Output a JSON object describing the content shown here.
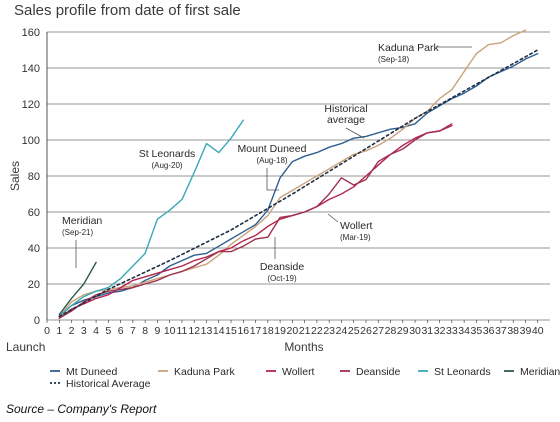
{
  "chart_data": {
    "type": "line",
    "title": "Sales profile from date of first sale",
    "xlabel": "Months",
    "xlabel_left": "Launch",
    "ylabel": "Sales",
    "source": "Source – Company's Report",
    "xlim": [
      0,
      41
    ],
    "ylim": [
      0,
      160
    ],
    "xticks": [
      0,
      1,
      2,
      3,
      4,
      5,
      6,
      7,
      8,
      9,
      10,
      11,
      12,
      13,
      14,
      15,
      16,
      17,
      18,
      19,
      20,
      21,
      22,
      23,
      24,
      25,
      26,
      27,
      28,
      29,
      30,
      31,
      32,
      33,
      34,
      35,
      36,
      37,
      38,
      39,
      40
    ],
    "yticks": [
      0,
      20,
      40,
      60,
      80,
      100,
      120,
      140,
      160
    ],
    "grid": "horizontal",
    "legend_position": "bottom",
    "series": [
      {
        "name": "Mt Duneed",
        "color": "#2f5f8f",
        "dash": "none",
        "x": [
          1,
          2,
          3,
          4,
          5,
          6,
          7,
          8,
          9,
          10,
          11,
          12,
          13,
          14,
          15,
          16,
          17,
          18,
          19,
          20,
          21,
          22,
          23,
          24,
          25,
          26,
          27,
          28,
          29,
          30,
          31,
          32,
          33,
          34,
          35,
          36,
          37,
          38,
          39,
          40
        ],
        "y": [
          2,
          8,
          11,
          13,
          15,
          16,
          18,
          22,
          25,
          30,
          33,
          36,
          37,
          41,
          45,
          49,
          53,
          61,
          79,
          88,
          91,
          93,
          96,
          98,
          101,
          102,
          104,
          106,
          107,
          109,
          115,
          119,
          123,
          126,
          130,
          135,
          138,
          141,
          145,
          148
        ]
      },
      {
        "name": "Kaduna Park",
        "color": "#c9a27a",
        "dash": "none",
        "x": [
          1,
          2,
          3,
          4,
          5,
          6,
          7,
          8,
          9,
          10,
          11,
          12,
          13,
          14,
          15,
          16,
          17,
          18,
          19,
          20,
          21,
          22,
          23,
          24,
          25,
          26,
          27,
          28,
          29,
          30,
          31,
          32,
          33,
          34,
          35,
          36,
          37,
          38,
          39
        ],
        "y": [
          2,
          10,
          14,
          16,
          17,
          18,
          19,
          21,
          23,
          25,
          27,
          29,
          31,
          36,
          42,
          47,
          52,
          58,
          68,
          72,
          76,
          80,
          84,
          88,
          92,
          94,
          97,
          101,
          106,
          112,
          116,
          123,
          128,
          138,
          148,
          153,
          154,
          158,
          161
        ]
      },
      {
        "name": "Wollert",
        "color": "#b5254f",
        "dash": "none",
        "x": [
          1,
          2,
          3,
          4,
          5,
          6,
          7,
          8,
          9,
          10,
          11,
          12,
          13,
          14,
          15,
          16,
          17,
          18,
          19,
          20,
          21,
          22,
          23,
          24,
          25,
          26,
          27,
          28,
          29,
          30,
          31,
          32,
          33
        ],
        "y": [
          1,
          6,
          9,
          12,
          14,
          18,
          22,
          24,
          26,
          28,
          30,
          33,
          35,
          38,
          40,
          44,
          47,
          52,
          56,
          58,
          60,
          63,
          67,
          70,
          74,
          80,
          86,
          92,
          97,
          101,
          104,
          105,
          108
        ]
      },
      {
        "name": "Deanside",
        "color": "#a0304f",
        "dash": "none",
        "x": [
          1,
          2,
          3,
          4,
          5,
          6,
          7,
          8,
          9,
          10,
          11,
          12,
          13,
          14,
          15,
          16,
          17,
          18,
          19,
          20,
          21,
          22,
          23,
          24,
          25,
          26,
          27,
          28,
          29,
          30,
          31,
          32,
          33
        ],
        "y": [
          1,
          5,
          10,
          14,
          16,
          17,
          18,
          20,
          22,
          25,
          27,
          30,
          34,
          38,
          38,
          41,
          45,
          46,
          57,
          58,
          60,
          63,
          70,
          79,
          75,
          78,
          88,
          92,
          95,
          100,
          104,
          105,
          109
        ]
      },
      {
        "name": "St Leonards",
        "color": "#3aa7b8",
        "dash": "none",
        "x": [
          1,
          2,
          3,
          4,
          5,
          6,
          7,
          8,
          9,
          10,
          11,
          12,
          13,
          14,
          15,
          16
        ],
        "y": [
          2,
          8,
          13,
          16,
          18,
          23,
          30,
          37,
          56,
          61,
          67,
          82,
          98,
          93,
          101,
          111
        ]
      },
      {
        "name": "Meridian",
        "color": "#2e5c4a",
        "dash": "none",
        "x": [
          1,
          2,
          3,
          4
        ],
        "y": [
          3,
          12,
          20,
          32
        ]
      },
      {
        "name": "Historical Average",
        "color": "#1f2f45",
        "dash": "dotted",
        "x": [
          1,
          5,
          10,
          15,
          20,
          25,
          30,
          35,
          40
        ],
        "y": [
          2,
          17,
          33,
          50,
          70,
          91,
          112,
          131,
          150
        ]
      }
    ],
    "annotations": [
      {
        "label": "Kaduna Park",
        "sublabel": "(Sep-18)"
      },
      {
        "label": "Historical",
        "sublabel": "average"
      },
      {
        "label": "Mount Duneed",
        "sublabel": "(Aug-18)"
      },
      {
        "label": "St Leonards",
        "sublabel": "(Aug-20)"
      },
      {
        "label": "Wollert",
        "sublabel": "(Mar-19)"
      },
      {
        "label": "Deanside",
        "sublabel": "(Oct-19)"
      },
      {
        "label": "Meridian",
        "sublabel": "(Sep-21)"
      }
    ]
  }
}
